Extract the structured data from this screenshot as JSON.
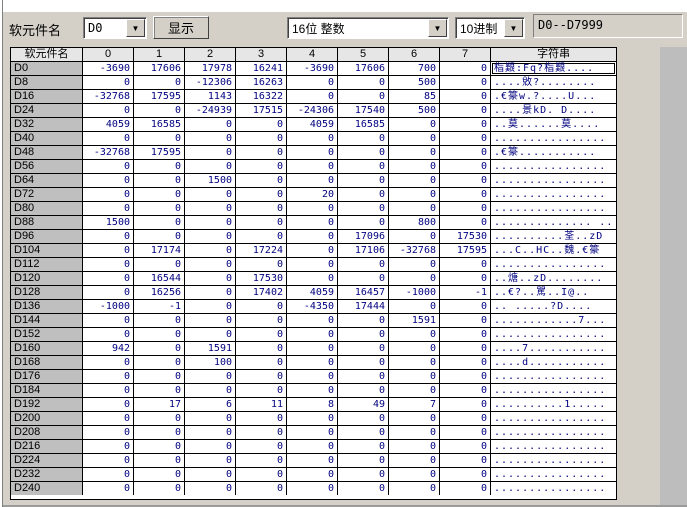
{
  "toolbar": {
    "device_label": "软元件名",
    "device_combo_value": "D0",
    "display_button": "显示",
    "format_combo_value": "16位 整数",
    "base_combo_value": "10进制",
    "range_text": "D0--D7999"
  },
  "colors": {
    "window_bg": "#d4d0c8",
    "value_text": "#000080",
    "grid_line": "#000000",
    "device_col_bg": "#bfbfbf",
    "header_bg": "#e6e6e6"
  },
  "table": {
    "headers": [
      "软元件名",
      "0",
      "1",
      "2",
      "3",
      "4",
      "5",
      "6",
      "7",
      "字符串"
    ],
    "selected_cell": {
      "row": "D0",
      "col": "字符串"
    },
    "rows": [
      {
        "device": "D0",
        "values": [
          -3690,
          17606,
          17978,
          16241,
          -3690,
          17606,
          700,
          0
        ],
        "string": "栺艱:Fq?栺艱...."
      },
      {
        "device": "D8",
        "values": [
          0,
          0,
          -12306,
          16263,
          0,
          0,
          500,
          0
        ],
        "string": "....敓?........"
      },
      {
        "device": "D16",
        "values": [
          -32768,
          17595,
          1143,
          16322,
          0,
          0,
          85,
          0
        ],
        "string": ".€籇w.?....U..."
      },
      {
        "device": "D24",
        "values": [
          0,
          0,
          -24939,
          17515,
          -24306,
          17540,
          500,
          0
        ],
        "string": "....景kD. D...."
      },
      {
        "device": "D32",
        "values": [
          4059,
          16585,
          0,
          0,
          4059,
          16585,
          0,
          0
        ],
        "string": "..莫......莫...."
      },
      {
        "device": "D40",
        "values": [
          0,
          0,
          0,
          0,
          0,
          0,
          0,
          0
        ],
        "string": "................"
      },
      {
        "device": "D48",
        "values": [
          -32768,
          17595,
          0,
          0,
          0,
          0,
          0,
          0
        ],
        "string": ".€籇..........."
      },
      {
        "device": "D56",
        "values": [
          0,
          0,
          0,
          0,
          0,
          0,
          0,
          0
        ],
        "string": "................"
      },
      {
        "device": "D64",
        "values": [
          0,
          0,
          1500,
          0,
          0,
          0,
          0,
          0
        ],
        "string": "................"
      },
      {
        "device": "D72",
        "values": [
          0,
          0,
          0,
          0,
          20,
          0,
          0,
          0
        ],
        "string": "................"
      },
      {
        "device": "D80",
        "values": [
          0,
          0,
          0,
          0,
          0,
          0,
          0,
          0
        ],
        "string": "................"
      },
      {
        "device": "D88",
        "values": [
          1500,
          0,
          0,
          0,
          0,
          0,
          800,
          0
        ],
        "string": ".............. .."
      },
      {
        "device": "D96",
        "values": [
          0,
          0,
          0,
          0,
          0,
          17096,
          0,
          17530
        ],
        "string": "..........荃..zD"
      },
      {
        "device": "D104",
        "values": [
          0,
          17174,
          0,
          17224,
          0,
          17106,
          -32768,
          17595
        ],
        "string": "...C..HC..魏.€籇"
      },
      {
        "device": "D112",
        "values": [
          0,
          0,
          0,
          0,
          0,
          0,
          0,
          0
        ],
        "string": "................"
      },
      {
        "device": "D120",
        "values": [
          0,
          16544,
          0,
          17530,
          0,
          0,
          0,
          0
        ],
        "string": "..煻..zD........"
      },
      {
        "device": "D128",
        "values": [
          0,
          16256,
          0,
          17402,
          4059,
          16457,
          -1000,
          -1
        ],
        "string": "..€?..駡..I@.."
      },
      {
        "device": "D136",
        "values": [
          -1000,
          -1,
          0,
          0,
          -4350,
          17444,
          0,
          0
        ],
        "string": "..  .....?D...."
      },
      {
        "device": "D144",
        "values": [
          0,
          0,
          0,
          0,
          0,
          0,
          1591,
          0
        ],
        "string": "............7..."
      },
      {
        "device": "D152",
        "values": [
          0,
          0,
          0,
          0,
          0,
          0,
          0,
          0
        ],
        "string": "................"
      },
      {
        "device": "D160",
        "values": [
          942,
          0,
          1591,
          0,
          0,
          0,
          0,
          0
        ],
        "string": "....7..........."
      },
      {
        "device": "D168",
        "values": [
          0,
          0,
          100,
          0,
          0,
          0,
          0,
          0
        ],
        "string": "....d..........."
      },
      {
        "device": "D176",
        "values": [
          0,
          0,
          0,
          0,
          0,
          0,
          0,
          0
        ],
        "string": "................"
      },
      {
        "device": "D184",
        "values": [
          0,
          0,
          0,
          0,
          0,
          0,
          0,
          0
        ],
        "string": "................"
      },
      {
        "device": "D192",
        "values": [
          0,
          17,
          6,
          11,
          8,
          49,
          7,
          0
        ],
        "string": "..........1....."
      },
      {
        "device": "D200",
        "values": [
          0,
          0,
          0,
          0,
          0,
          0,
          0,
          0
        ],
        "string": "................"
      },
      {
        "device": "D208",
        "values": [
          0,
          0,
          0,
          0,
          0,
          0,
          0,
          0
        ],
        "string": "................"
      },
      {
        "device": "D216",
        "values": [
          0,
          0,
          0,
          0,
          0,
          0,
          0,
          0
        ],
        "string": "................"
      },
      {
        "device": "D224",
        "values": [
          0,
          0,
          0,
          0,
          0,
          0,
          0,
          0
        ],
        "string": "................"
      },
      {
        "device": "D232",
        "values": [
          0,
          0,
          0,
          0,
          0,
          0,
          0,
          0
        ],
        "string": "................"
      },
      {
        "device": "D240",
        "values": [
          0,
          0,
          0,
          0,
          0,
          0,
          0,
          0
        ],
        "string": "................"
      }
    ]
  }
}
